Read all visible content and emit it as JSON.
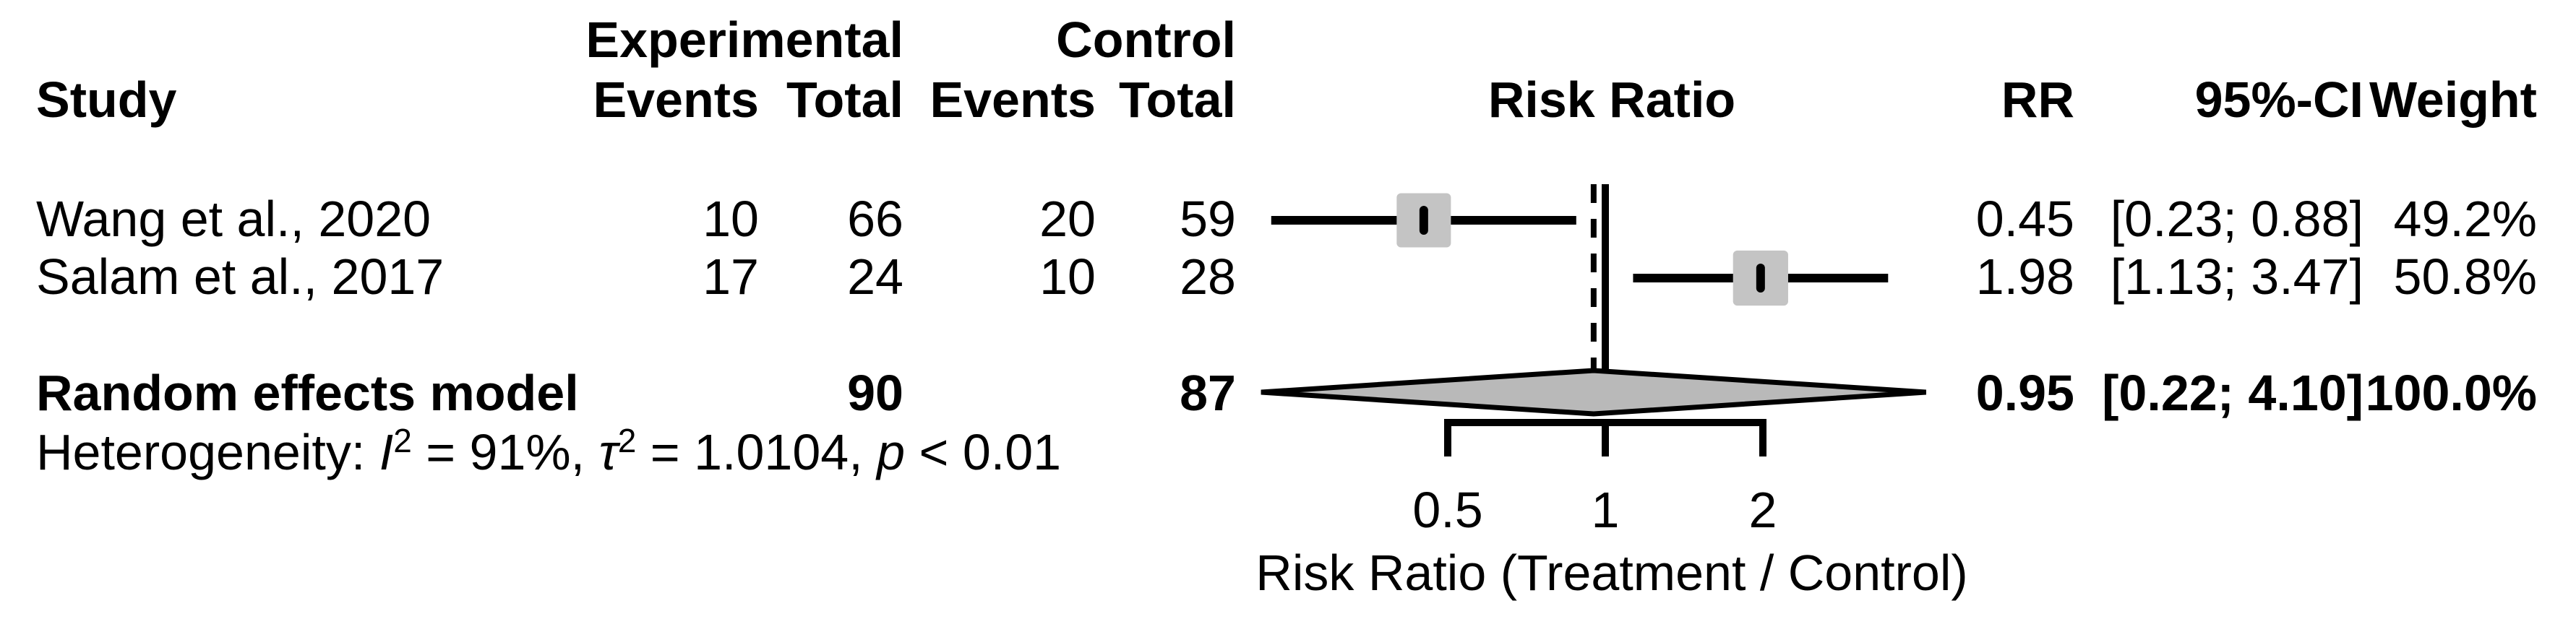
{
  "header": {
    "study": "Study",
    "experimental": "Experimental",
    "control": "Control",
    "events": "Events",
    "total": "Total",
    "risk_ratio": "Risk Ratio",
    "rr": "RR",
    "ci": "95%-CI",
    "weight": "Weight"
  },
  "rows": [
    {
      "study": "Wang et al., 2020",
      "e_events": "10",
      "e_total": "66",
      "c_events": "20",
      "c_total": "59",
      "rr": "0.45",
      "ci": "[0.23; 0.88]",
      "weight": "49.2%"
    },
    {
      "study": "Salam et al., 2017",
      "e_events": "17",
      "e_total": "24",
      "c_events": "10",
      "c_total": "28",
      "rr": "1.98",
      "ci": "[1.13; 3.47]",
      "weight": "50.8%"
    }
  ],
  "summary": {
    "label": "Random effects model",
    "e_total": "90",
    "c_total": "87",
    "rr": "0.95",
    "ci": "[0.22; 4.10]",
    "weight": "100.0%"
  },
  "heterogeneity": {
    "prefix": "Heterogeneity: ",
    "i": "I",
    "i_sup": "2",
    "seg1": " = 91%, ",
    "tau": "τ",
    "tau_sup": "2",
    "seg2": " = 1.0104, ",
    "p": "p",
    "seg3": " < 0.01"
  },
  "axis": {
    "title": "Risk Ratio (Treatment / Control)",
    "ticks": [
      "0.5",
      "1",
      "2"
    ]
  },
  "colors": {
    "square": "#c4c4c4",
    "diamond": "#b9b9b9",
    "line": "#000000"
  },
  "chart_data": {
    "type": "forest",
    "x_scale": "log",
    "measure": "Risk Ratio",
    "ref_line": 1,
    "pooled_line": 0.95,
    "axis_ticks": [
      0.5,
      1,
      2
    ],
    "axis_range": [
      0.2,
      4.5
    ],
    "axis_title": "Risk Ratio (Treatment / Control)",
    "studies": [
      {
        "name": "Wang et al., 2020",
        "events_exp": 10,
        "total_exp": 66,
        "events_ctrl": 20,
        "total_ctrl": 59,
        "rr": 0.45,
        "ci_low": 0.23,
        "ci_high": 0.88,
        "weight_pct": 49.2
      },
      {
        "name": "Salam et al., 2017",
        "events_exp": 17,
        "total_exp": 24,
        "events_ctrl": 10,
        "total_ctrl": 28,
        "rr": 1.98,
        "ci_low": 1.13,
        "ci_high": 3.47,
        "weight_pct": 50.8
      }
    ],
    "summary": {
      "model": "Random effects model",
      "total_exp": 90,
      "total_ctrl": 87,
      "rr": 0.95,
      "ci_low": 0.22,
      "ci_high": 4.1,
      "weight_pct": 100.0,
      "i2": "91%",
      "tau2": 1.0104,
      "p": "< 0.01"
    }
  }
}
